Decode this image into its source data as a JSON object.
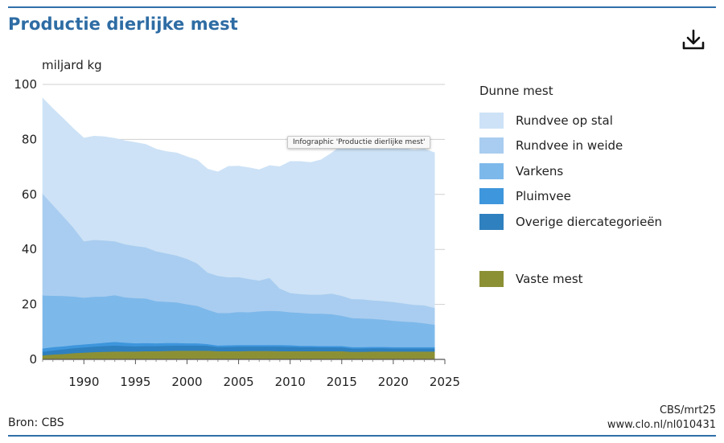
{
  "title": "Productie dierlijke mest",
  "download_icon": "download-icon",
  "tooltip": "Infographic 'Productie dierlijke mest'",
  "source": "Bron: CBS",
  "credit_line1": "CBS/mrt25",
  "credit_line2": "www.clo.nl/nl010431",
  "legend": {
    "group1_title": "Dunne mest",
    "items": [
      {
        "label": "Rundvee op stal",
        "color": "#cde2f6"
      },
      {
        "label": "Rundvee in weide",
        "color": "#a9cdf0"
      },
      {
        "label": "Varkens",
        "color": "#7db8ea"
      },
      {
        "label": "Pluimvee",
        "color": "#3e96dc"
      },
      {
        "label": "Overige diercategorieën",
        "color": "#2f80bf"
      }
    ],
    "solid": {
      "label": "Vaste mest",
      "color": "#8c9035"
    }
  },
  "chart_data": {
    "type": "area",
    "stacked": true,
    "ylabel": "miljard kg",
    "ylim": [
      0,
      100
    ],
    "yticks": [
      0,
      20,
      40,
      60,
      80,
      100
    ],
    "xlim": [
      1986,
      2025
    ],
    "xticks": [
      1990,
      1995,
      2000,
      2005,
      2010,
      2015,
      2020,
      2025
    ],
    "x": [
      1986,
      1987,
      1988,
      1989,
      1990,
      1991,
      1992,
      1993,
      1994,
      1995,
      1996,
      1997,
      1998,
      1999,
      2000,
      2001,
      2002,
      2003,
      2004,
      2005,
      2006,
      2007,
      2008,
      2009,
      2010,
      2011,
      2012,
      2013,
      2014,
      2015,
      2016,
      2017,
      2018,
      2019,
      2020,
      2021,
      2022,
      2023,
      2024
    ],
    "grid": true,
    "series": [
      {
        "name": "Vaste mest",
        "color": "#8c9035",
        "values": [
          1.5,
          1.8,
          2,
          2.3,
          2.5,
          2.7,
          2.8,
          2.9,
          2.9,
          2.9,
          3,
          3,
          3.1,
          3.2,
          3.2,
          3.2,
          3.2,
          3,
          3,
          3,
          3.1,
          3.1,
          3.1,
          3,
          3,
          3,
          3,
          3,
          3,
          3,
          2.8,
          2.8,
          2.9,
          2.9,
          2.9,
          2.9,
          2.9,
          2.9,
          2.9
        ]
      },
      {
        "name": "Overige diercategorieën",
        "color": "#2f80bf",
        "values": [
          1.3,
          1.5,
          1.7,
          1.8,
          1.9,
          2,
          2.1,
          2.2,
          2,
          1.9,
          1.9,
          1.9,
          1.9,
          1.9,
          1.9,
          1.9,
          1.8,
          1.5,
          1.6,
          1.7,
          1.6,
          1.6,
          1.6,
          1.7,
          1.6,
          1.5,
          1.5,
          1.4,
          1.4,
          1.4,
          1.2,
          1.2,
          1.2,
          1.2,
          1.1,
          1.1,
          1.1,
          1.1,
          1.1
        ]
      },
      {
        "name": "Pluimvee",
        "color": "#3e96dc",
        "values": [
          1.2,
          1.2,
          1.1,
          1.1,
          1.1,
          1.1,
          1.2,
          1.3,
          1.2,
          1.1,
          1.1,
          1,
          1,
          0.9,
          0.8,
          0.8,
          0.6,
          0.6,
          0.6,
          0.6,
          0.6,
          0.6,
          0.6,
          0.6,
          0.6,
          0.5,
          0.5,
          0.5,
          0.5,
          0.5,
          0.5,
          0.5,
          0.5,
          0.5,
          0.5,
          0.5,
          0.5,
          0.5,
          0.5
        ]
      },
      {
        "name": "Varkens",
        "color": "#7db8ea",
        "values": [
          19.3,
          18.7,
          18.3,
          17.7,
          17,
          17,
          16.8,
          17,
          16.5,
          16.4,
          16.2,
          15.3,
          15,
          14.8,
          14.2,
          13.6,
          12.5,
          11.8,
          11.7,
          12,
          11.9,
          12.2,
          12.4,
          12.3,
          12,
          12,
          11.7,
          11.8,
          11.6,
          11,
          10.6,
          10.4,
          10.2,
          9.9,
          9.6,
          9.3,
          9.1,
          8.7,
          8.2
        ]
      },
      {
        "name": "Rundvee in weide",
        "color": "#a9cdf0",
        "values": [
          37,
          33,
          29,
          25,
          20.5,
          20.7,
          20.4,
          19.6,
          19.3,
          19,
          18.6,
          18.2,
          17.6,
          17,
          16.5,
          15.4,
          13.5,
          13.5,
          13,
          12.7,
          12.1,
          11.2,
          12,
          8.2,
          7,
          6.8,
          6.9,
          6.9,
          7.5,
          7.3,
          6.9,
          7,
          6.7,
          6.8,
          6.8,
          6.6,
          6.3,
          6.5,
          6.1
        ]
      },
      {
        "name": "Rundvee op stal",
        "color": "#cde2f6",
        "values": [
          34.7,
          35,
          35.5,
          36,
          37.5,
          37.7,
          37.7,
          37.4,
          37.6,
          37.6,
          37.4,
          37.1,
          37,
          37.3,
          37.1,
          37.6,
          37.6,
          37.8,
          40.3,
          40.3,
          40.4,
          40.3,
          40.8,
          44.3,
          47.8,
          48.2,
          48,
          49,
          51,
          54.6,
          58,
          58.6,
          57.3,
          57,
          56.9,
          56.3,
          56.3,
          56.8,
          56.4
        ]
      }
    ]
  }
}
